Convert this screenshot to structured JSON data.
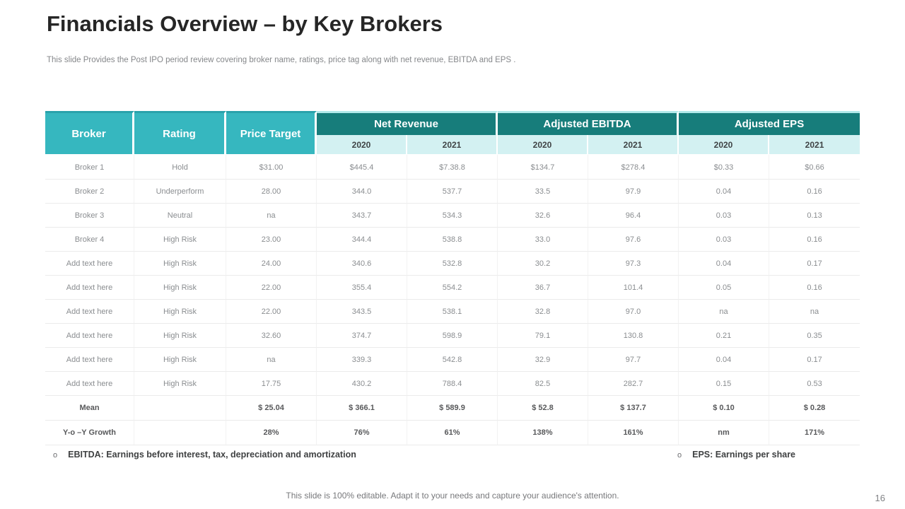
{
  "slide": {
    "title": "Financials Overview – by Key Brokers",
    "subtitle": "This slide Provides the Post IPO period review covering broker name, ratings, price tag along with net revenue, EBITDA and EPS .",
    "bottom_note": "This slide is 100% editable. Adapt it to your needs and capture your audience's attention.",
    "page_number": "16"
  },
  "colors": {
    "header_teal_bright": "#36b7bf",
    "header_teal_dark": "#177d7b",
    "header_teal_light": "#d3f1f2",
    "body_text_gray": "#8a8d90",
    "summary_text": "#58595b",
    "title_text": "#262626"
  },
  "table": {
    "columns": [
      "Broker",
      "Rating",
      "Price Target"
    ],
    "groups": [
      {
        "label": "Net Revenue",
        "years": [
          "2020",
          "2021"
        ]
      },
      {
        "label": "Adjusted EBITDA",
        "years": [
          "2020",
          "2021"
        ]
      },
      {
        "label": "Adjusted EPS",
        "years": [
          "2020",
          "2021"
        ]
      }
    ],
    "rows": [
      [
        "Broker 1",
        "Hold",
        "$31.00",
        "$445.4",
        "$7.38.8",
        "$134.7",
        "$278.4",
        "$0.33",
        "$0.66"
      ],
      [
        "Broker 2",
        "Underperform",
        "28.00",
        "344.0",
        "537.7",
        "33.5",
        "97.9",
        "0.04",
        "0.16"
      ],
      [
        "Broker 3",
        "Neutral",
        "na",
        "343.7",
        "534.3",
        "32.6",
        "96.4",
        "0.03",
        "0.13"
      ],
      [
        "Broker 4",
        "High Risk",
        "23.00",
        "344.4",
        "538.8",
        "33.0",
        "97.6",
        "0.03",
        "0.16"
      ],
      [
        "Add text here",
        "High Risk",
        "24.00",
        "340.6",
        "532.8",
        "30.2",
        "97.3",
        "0.04",
        "0.17"
      ],
      [
        "Add text here",
        "High Risk",
        "22.00",
        "355.4",
        "554.2",
        "36.7",
        "101.4",
        "0.05",
        "0.16"
      ],
      [
        "Add text here",
        "High Risk",
        "22.00",
        "343.5",
        "538.1",
        "32.8",
        "97.0",
        "na",
        "na"
      ],
      [
        "Add text here",
        "High Risk",
        "32.60",
        "374.7",
        "598.9",
        "79.1",
        "130.8",
        "0.21",
        "0.35"
      ],
      [
        "Add text here",
        "High Risk",
        "na",
        "339.3",
        "542.8",
        "32.9",
        "97.7",
        "0.04",
        "0.17"
      ],
      [
        "Add text here",
        "High Risk",
        "17.75",
        "430.2",
        "788.4",
        "82.5",
        "282.7",
        "0.15",
        "0.53"
      ]
    ],
    "summary_rows": [
      [
        "Mean",
        "",
        "$ 25.04",
        "$ 366.1",
        "$ 589.9",
        "$ 52.8",
        "$ 137.7",
        "$ 0.10",
        "$ 0.28"
      ],
      [
        "Y-o –Y Growth",
        "",
        "28%",
        "76%",
        "61%",
        "138%",
        "161%",
        "nm",
        "171%"
      ]
    ]
  },
  "footnotes": [
    {
      "bullet": "o",
      "text": "EBITDA: Earnings before interest, tax, depreciation and amortization"
    },
    {
      "bullet": "o",
      "text": "EPS: Earnings per share"
    }
  ]
}
